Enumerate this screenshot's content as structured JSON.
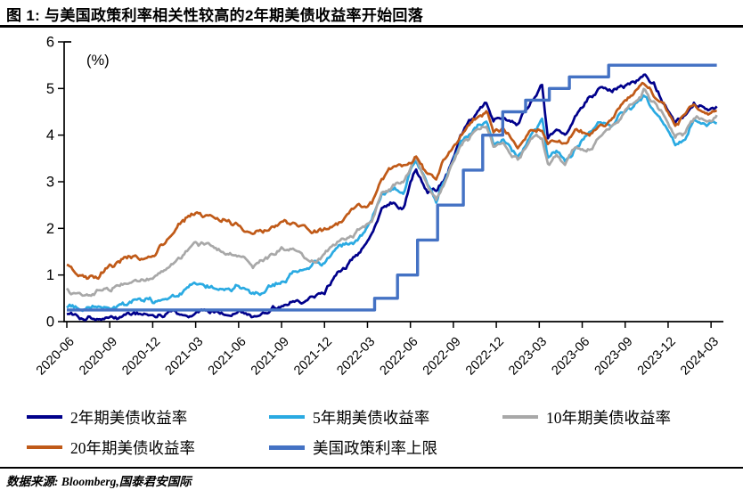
{
  "title": "图 1:  与美国政策利率相关性较高的2年期美债收益率开始回落",
  "source": "数据来源: Bloomberg,国泰君安国际",
  "chart_data": {
    "type": "line",
    "title": "与美国政策利率相关性较高的2年期美债收益率开始回落",
    "unit_label": "(%)",
    "ylim": [
      0,
      6
    ],
    "yticks": [
      0,
      1,
      2,
      3,
      4,
      5,
      6
    ],
    "grid": "off",
    "legend_position": "bottom",
    "x_unit": "months since 2020-06",
    "xticks": [
      {
        "t": 0,
        "label": "2020-06"
      },
      {
        "t": 3,
        "label": "2020-09"
      },
      {
        "t": 6,
        "label": "2020-12"
      },
      {
        "t": 9,
        "label": "2021-03"
      },
      {
        "t": 12,
        "label": "2021-06"
      },
      {
        "t": 15,
        "label": "2021-09"
      },
      {
        "t": 18,
        "label": "2021-12"
      },
      {
        "t": 21,
        "label": "2022-03"
      },
      {
        "t": 24,
        "label": "2022-06"
      },
      {
        "t": 27,
        "label": "2022-09"
      },
      {
        "t": 30,
        "label": "2022-12"
      },
      {
        "t": 33,
        "label": "2023-03"
      },
      {
        "t": 36,
        "label": "2023-06"
      },
      {
        "t": 39,
        "label": "2023-09"
      },
      {
        "t": 42,
        "label": "2023-12"
      },
      {
        "t": 45,
        "label": "2024-03"
      }
    ],
    "series": [
      {
        "name": "2年期美债收益率",
        "color": "#00008B",
        "style": "noisy",
        "points": [
          [
            0,
            0.17
          ],
          [
            1,
            0.12
          ],
          [
            2,
            0.14
          ],
          [
            3,
            0.13
          ],
          [
            4,
            0.15
          ],
          [
            5,
            0.17
          ],
          [
            6,
            0.13
          ],
          [
            7,
            0.12
          ],
          [
            8,
            0.13
          ],
          [
            9,
            0.16
          ],
          [
            10,
            0.16
          ],
          [
            11,
            0.15
          ],
          [
            12,
            0.22
          ],
          [
            13,
            0.19
          ],
          [
            14,
            0.21
          ],
          [
            15,
            0.28
          ],
          [
            16,
            0.47
          ],
          [
            17,
            0.55
          ],
          [
            18,
            0.73
          ],
          [
            19,
            1.18
          ],
          [
            20,
            1.44
          ],
          [
            21.3,
            1.95
          ],
          [
            22,
            2.44
          ],
          [
            22.8,
            2.62
          ],
          [
            23.5,
            2.56
          ],
          [
            24.4,
            3.38
          ],
          [
            25.2,
            2.85
          ],
          [
            25.8,
            2.9
          ],
          [
            26.6,
            3.32
          ],
          [
            27.5,
            4.1
          ],
          [
            28.5,
            4.45
          ],
          [
            29.3,
            4.68
          ],
          [
            29.8,
            4.35
          ],
          [
            30.5,
            4.42
          ],
          [
            31.5,
            4.15
          ],
          [
            32.5,
            4.72
          ],
          [
            33.2,
            5.02
          ],
          [
            33.6,
            3.92
          ],
          [
            34.2,
            4.12
          ],
          [
            34.8,
            3.96
          ],
          [
            35.5,
            4.32
          ],
          [
            36.5,
            4.76
          ],
          [
            37.3,
            4.95
          ],
          [
            38,
            4.87
          ],
          [
            38.7,
            5.02
          ],
          [
            39.5,
            5.08
          ],
          [
            40.3,
            5.17
          ],
          [
            41,
            5.02
          ],
          [
            41.7,
            4.68
          ],
          [
            42.5,
            4.32
          ],
          [
            43.2,
            4.36
          ],
          [
            43.8,
            4.66
          ],
          [
            44.5,
            4.58
          ],
          [
            45,
            4.62
          ],
          [
            45.4,
            4.66
          ]
        ]
      },
      {
        "name": "5年期美债收益率",
        "color": "#2AAAE2",
        "style": "noisy",
        "points": [
          [
            0,
            0.31
          ],
          [
            1,
            0.27
          ],
          [
            2,
            0.3
          ],
          [
            3,
            0.29
          ],
          [
            4,
            0.35
          ],
          [
            5,
            0.4
          ],
          [
            6,
            0.38
          ],
          [
            7,
            0.45
          ],
          [
            8,
            0.62
          ],
          [
            9,
            0.9
          ],
          [
            10,
            0.85
          ],
          [
            11,
            0.8
          ],
          [
            12,
            0.88
          ],
          [
            13,
            0.7
          ],
          [
            14,
            0.78
          ],
          [
            15,
            0.97
          ],
          [
            16,
            1.12
          ],
          [
            17,
            1.16
          ],
          [
            18,
            1.25
          ],
          [
            19,
            1.55
          ],
          [
            20,
            1.72
          ],
          [
            21.3,
            2.1
          ],
          [
            22,
            2.75
          ],
          [
            22.8,
            2.92
          ],
          [
            23.5,
            2.85
          ],
          [
            24.4,
            3.56
          ],
          [
            25.2,
            3.0
          ],
          [
            25.8,
            2.7
          ],
          [
            26.6,
            3.27
          ],
          [
            27.5,
            3.95
          ],
          [
            28.5,
            4.2
          ],
          [
            29.3,
            4.38
          ],
          [
            29.8,
            3.9
          ],
          [
            30.5,
            3.96
          ],
          [
            31.5,
            3.56
          ],
          [
            32.5,
            4.06
          ],
          [
            33.2,
            4.3
          ],
          [
            33.6,
            3.48
          ],
          [
            34.2,
            3.62
          ],
          [
            34.8,
            3.42
          ],
          [
            35.5,
            3.72
          ],
          [
            36.5,
            4.02
          ],
          [
            37.3,
            4.2
          ],
          [
            38,
            4.16
          ],
          [
            38.7,
            4.46
          ],
          [
            39.5,
            4.62
          ],
          [
            40.3,
            4.88
          ],
          [
            41,
            4.55
          ],
          [
            41.7,
            4.26
          ],
          [
            42.5,
            3.86
          ],
          [
            43.2,
            3.96
          ],
          [
            43.8,
            4.3
          ],
          [
            44.5,
            4.2
          ],
          [
            45,
            4.22
          ],
          [
            45.4,
            4.28
          ]
        ]
      },
      {
        "name": "10年期美债收益率",
        "color": "#A8A8A8",
        "style": "noisy",
        "points": [
          [
            0,
            0.68
          ],
          [
            1,
            0.58
          ],
          [
            1.5,
            0.54
          ],
          [
            2,
            0.7
          ],
          [
            3,
            0.68
          ],
          [
            4,
            0.86
          ],
          [
            5,
            0.85
          ],
          [
            6,
            0.92
          ],
          [
            7,
            1.08
          ],
          [
            8,
            1.42
          ],
          [
            9,
            1.72
          ],
          [
            10,
            1.62
          ],
          [
            11,
            1.6
          ],
          [
            12,
            1.46
          ],
          [
            13,
            1.25
          ],
          [
            14,
            1.3
          ],
          [
            15,
            1.5
          ],
          [
            16,
            1.56
          ],
          [
            17,
            1.45
          ],
          [
            18,
            1.51
          ],
          [
            19,
            1.78
          ],
          [
            20,
            1.86
          ],
          [
            21.3,
            2.15
          ],
          [
            22,
            2.8
          ],
          [
            22.8,
            2.96
          ],
          [
            23.5,
            2.9
          ],
          [
            24.4,
            3.46
          ],
          [
            25.2,
            2.95
          ],
          [
            25.8,
            2.64
          ],
          [
            26.6,
            3.14
          ],
          [
            27.5,
            3.76
          ],
          [
            28.5,
            4.05
          ],
          [
            29.3,
            4.18
          ],
          [
            29.8,
            3.7
          ],
          [
            30.5,
            3.82
          ],
          [
            31.5,
            3.46
          ],
          [
            32.5,
            3.92
          ],
          [
            33.2,
            3.98
          ],
          [
            33.6,
            3.48
          ],
          [
            34.2,
            3.56
          ],
          [
            34.8,
            3.42
          ],
          [
            35.5,
            3.72
          ],
          [
            36.5,
            3.76
          ],
          [
            37.3,
            3.98
          ],
          [
            38,
            4.1
          ],
          [
            38.7,
            4.36
          ],
          [
            39.5,
            4.6
          ],
          [
            40.3,
            4.9
          ],
          [
            41,
            4.6
          ],
          [
            41.7,
            4.36
          ],
          [
            42.5,
            3.92
          ],
          [
            43.2,
            4.0
          ],
          [
            43.8,
            4.3
          ],
          [
            44.5,
            4.22
          ],
          [
            45,
            4.22
          ],
          [
            45.4,
            4.3
          ]
        ]
      },
      {
        "name": "20年期美债收益率",
        "color": "#C05A18",
        "style": "noisy",
        "points": [
          [
            0,
            1.2
          ],
          [
            1,
            1.06
          ],
          [
            2.2,
            0.97
          ],
          [
            3,
            1.22
          ],
          [
            4,
            1.4
          ],
          [
            5,
            1.4
          ],
          [
            6,
            1.45
          ],
          [
            7,
            1.65
          ],
          [
            8,
            2.05
          ],
          [
            9,
            2.3
          ],
          [
            10,
            2.22
          ],
          [
            11,
            2.2
          ],
          [
            12,
            2.02
          ],
          [
            13,
            1.83
          ],
          [
            14,
            1.9
          ],
          [
            15,
            2.02
          ],
          [
            16,
            1.98
          ],
          [
            17,
            1.88
          ],
          [
            18,
            1.94
          ],
          [
            19,
            2.18
          ],
          [
            20,
            2.28
          ],
          [
            21.3,
            2.52
          ],
          [
            22,
            3.0
          ],
          [
            22.8,
            3.25
          ],
          [
            23.5,
            3.3
          ],
          [
            24.4,
            3.56
          ],
          [
            25.2,
            3.25
          ],
          [
            25.8,
            3.1
          ],
          [
            26.6,
            3.56
          ],
          [
            27.5,
            4.0
          ],
          [
            28.5,
            4.35
          ],
          [
            29.3,
            4.54
          ],
          [
            29.8,
            4.05
          ],
          [
            30.5,
            4.12
          ],
          [
            31.5,
            3.8
          ],
          [
            32.5,
            4.15
          ],
          [
            33.2,
            4.15
          ],
          [
            33.6,
            3.8
          ],
          [
            34.2,
            3.86
          ],
          [
            34.8,
            3.76
          ],
          [
            35.5,
            4.06
          ],
          [
            36.5,
            4.06
          ],
          [
            37.3,
            4.25
          ],
          [
            38,
            4.4
          ],
          [
            38.7,
            4.6
          ],
          [
            39.5,
            4.85
          ],
          [
            40.3,
            5.14
          ],
          [
            41,
            4.86
          ],
          [
            41.7,
            4.66
          ],
          [
            42.5,
            4.25
          ],
          [
            43.2,
            4.4
          ],
          [
            43.8,
            4.62
          ],
          [
            44.5,
            4.5
          ],
          [
            45,
            4.48
          ],
          [
            45.4,
            4.54
          ]
        ]
      },
      {
        "name": "美国政策利率上限",
        "color": "#4472C4",
        "style": "step",
        "points": [
          [
            0,
            0.25
          ],
          [
            21.5,
            0.5
          ],
          [
            23.1,
            1.0
          ],
          [
            24.5,
            1.75
          ],
          [
            25.9,
            2.5
          ],
          [
            27.7,
            3.25
          ],
          [
            29.05,
            4.0
          ],
          [
            30.45,
            4.5
          ],
          [
            32.05,
            4.75
          ],
          [
            33.7,
            5.0
          ],
          [
            35.1,
            5.25
          ],
          [
            37.85,
            5.5
          ],
          [
            45.4,
            5.5
          ]
        ]
      }
    ]
  }
}
